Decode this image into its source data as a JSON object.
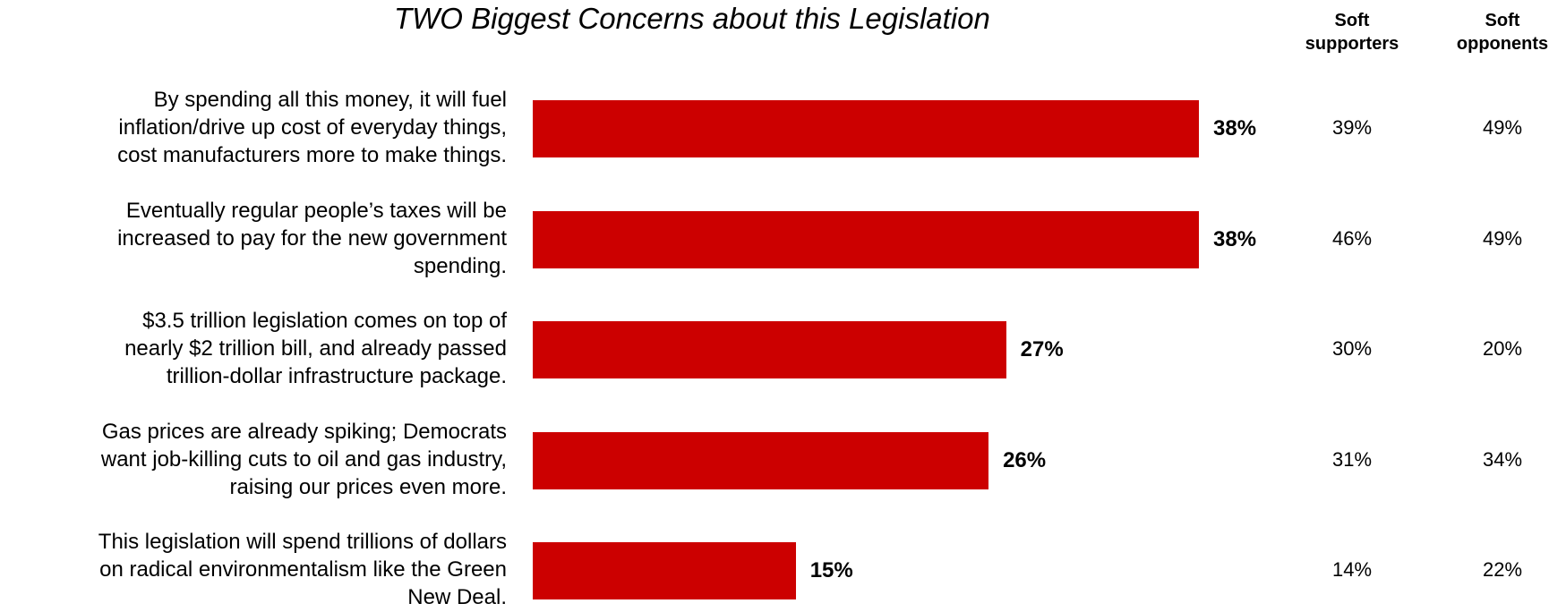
{
  "chart_data": {
    "type": "bar",
    "orientation": "horizontal",
    "title": "TWO Biggest Concerns about this Legislation",
    "categories": [
      "By spending all this money, it will fuel inflation/drive up cost of everyday things, cost manufacturers more to make things.",
      "Eventually regular people’s taxes will be increased to pay for the new government spending.",
      "$3.5 trillion legislation comes on top of nearly $2 trillion bill,  and already passed trillion-dollar infrastructure package.",
      "Gas prices are already spiking; Democrats want job-killing cuts to oil and gas industry, raising our prices even more.",
      "This legislation will spend trillions of dollars on radical environmentalism like the Green New Deal."
    ],
    "label_lines": [
      [
        "By spending all this money, it will fuel",
        "inflation/drive up cost of everyday things,",
        "cost manufacturers more to make things."
      ],
      [
        "Eventually regular people’s taxes will be",
        "increased to pay for the new government",
        "spending."
      ],
      [
        "$3.5 trillion legislation comes on top of",
        "nearly $2 trillion bill,  and already passed",
        "trillion-dollar infrastructure package."
      ],
      [
        "Gas prices are already spiking; Democrats",
        "want job-killing cuts to oil and gas industry,",
        "raising our prices even more."
      ],
      [
        "This legislation will spend trillions of dollars",
        "on radical environmentalism like the Green",
        "New Deal."
      ]
    ],
    "values": [
      38,
      38,
      27,
      26,
      15
    ],
    "value_labels": [
      "38%",
      "38%",
      "27%",
      "26%",
      "15%"
    ],
    "bar_color": "#cc0000",
    "grid": false,
    "legend": "none",
    "side_columns": [
      {
        "header": [
          "Soft",
          "supporters"
        ],
        "values": [
          "39%",
          "46%",
          "30%",
          "31%",
          "14%"
        ]
      },
      {
        "header": [
          "Soft",
          "opponents"
        ],
        "values": [
          "49%",
          "49%",
          "20%",
          "34%",
          "22%"
        ]
      }
    ]
  }
}
